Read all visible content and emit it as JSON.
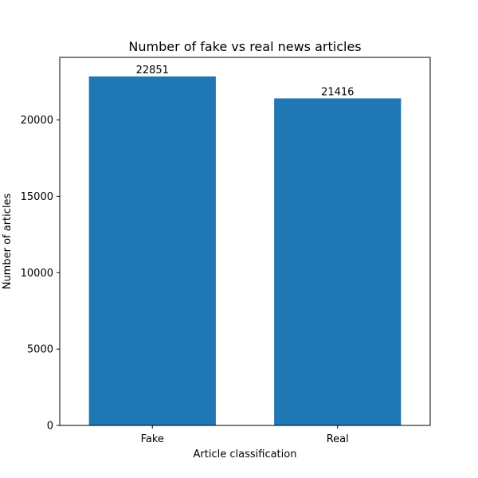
{
  "chart_data": {
    "type": "bar",
    "title": "Number of fake vs real news articles",
    "xlabel": "Article classification",
    "ylabel": "Number of articles",
    "categories": [
      "Fake",
      "Real"
    ],
    "values": [
      22851,
      21416
    ],
    "data_labels": [
      "22851",
      "21416"
    ],
    "ylim": [
      0,
      24100
    ],
    "yticks": [
      0,
      5000,
      10000,
      15000,
      20000
    ],
    "ytick_labels": [
      "0",
      "5000",
      "10000",
      "15000",
      "20000"
    ],
    "bar_color": "#1f77b4",
    "grid": false
  }
}
